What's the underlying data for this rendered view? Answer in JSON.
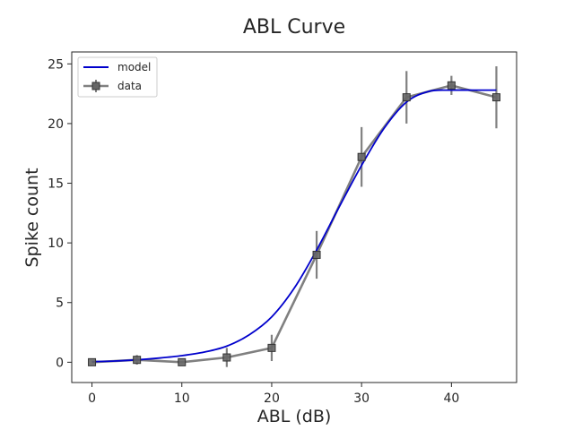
{
  "chart_data": {
    "type": "line",
    "title": "ABL Curve",
    "xlabel": "ABL (dB)",
    "ylabel": "Spike count",
    "xlim": [
      -2.25,
      47.25
    ],
    "ylim": [
      -1.7,
      26.0
    ],
    "xticks": [
      0,
      10,
      20,
      30,
      40
    ],
    "yticks": [
      0,
      5,
      10,
      15,
      20,
      25
    ],
    "grid": false,
    "legend_position": "top-left",
    "series": [
      {
        "name": "model",
        "kind": "line",
        "color": "#0000cc",
        "x": [
          0,
          2.5,
          5,
          7.5,
          10,
          12.5,
          15,
          17.5,
          20,
          22.5,
          25,
          27.5,
          30,
          32.5,
          35,
          37.5,
          40,
          42.5,
          45
        ],
        "y": [
          0.05,
          0.1,
          0.2,
          0.35,
          0.55,
          0.85,
          1.35,
          2.3,
          3.8,
          6.2,
          9.4,
          13.0,
          16.5,
          19.6,
          21.8,
          22.7,
          22.8,
          22.8,
          22.8
        ]
      },
      {
        "name": "data",
        "kind": "errorbar",
        "color": "#808080",
        "x": [
          0,
          5,
          10,
          15,
          20,
          25,
          30,
          35,
          40,
          45
        ],
        "y": [
          0.0,
          0.2,
          0.0,
          0.4,
          1.2,
          9.0,
          17.2,
          22.2,
          23.2,
          22.2
        ],
        "yerr": [
          0.0,
          0.4,
          0.0,
          0.8,
          1.1,
          2.0,
          2.5,
          2.2,
          0.8,
          2.6
        ]
      }
    ]
  }
}
